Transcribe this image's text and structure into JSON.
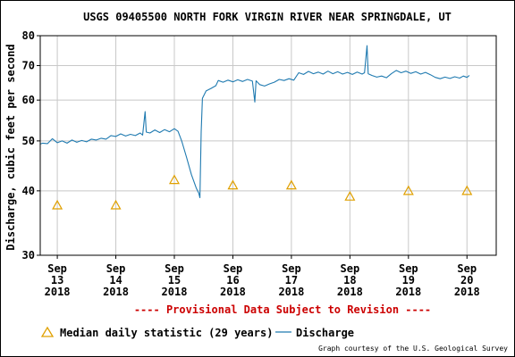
{
  "chart_data": {
    "type": "line",
    "title": "USGS 09405500 NORTH FORK VIRGIN RIVER NEAR SPRINGDALE, UT",
    "ylabel": "Discharge, cubic feet per second",
    "xlabel": "",
    "y_scale": "log",
    "ylim": [
      30,
      80
    ],
    "y_ticks": [
      30,
      40,
      50,
      60,
      70,
      80
    ],
    "x_range": [
      "2018-09-12T17:00",
      "2018-09-20T12:00"
    ],
    "x_ticks": [
      {
        "date": "2018-09-13",
        "month": "Sep",
        "day": "13",
        "year": "2018"
      },
      {
        "date": "2018-09-14",
        "month": "Sep",
        "day": "14",
        "year": "2018"
      },
      {
        "date": "2018-09-15",
        "month": "Sep",
        "day": "15",
        "year": "2018"
      },
      {
        "date": "2018-09-16",
        "month": "Sep",
        "day": "16",
        "year": "2018"
      },
      {
        "date": "2018-09-17",
        "month": "Sep",
        "day": "17",
        "year": "2018"
      },
      {
        "date": "2018-09-18",
        "month": "Sep",
        "day": "18",
        "year": "2018"
      },
      {
        "date": "2018-09-19",
        "month": "Sep",
        "day": "19",
        "year": "2018"
      },
      {
        "date": "2018-09-20",
        "month": "Sep",
        "day": "20",
        "year": "2018"
      }
    ],
    "grid": true,
    "series": [
      {
        "name": "Discharge",
        "color": "#1f7ab0",
        "points": [
          [
            "2018-09-12T17:00",
            49.3
          ],
          [
            "2018-09-12T18:00",
            49.5
          ],
          [
            "2018-09-12T20:00",
            49.4
          ],
          [
            "2018-09-12T22:00",
            50.5
          ],
          [
            "2018-09-13T00:00",
            49.6
          ],
          [
            "2018-09-13T02:00",
            50.0
          ],
          [
            "2018-09-13T04:00",
            49.5
          ],
          [
            "2018-09-13T06:00",
            50.2
          ],
          [
            "2018-09-13T08:00",
            49.7
          ],
          [
            "2018-09-13T10:00",
            50.1
          ],
          [
            "2018-09-13T12:00",
            49.8
          ],
          [
            "2018-09-13T14:00",
            50.4
          ],
          [
            "2018-09-13T16:00",
            50.2
          ],
          [
            "2018-09-13T18:00",
            50.6
          ],
          [
            "2018-09-13T20:00",
            50.4
          ],
          [
            "2018-09-13T22:00",
            51.2
          ],
          [
            "2018-09-14T00:00",
            51.0
          ],
          [
            "2018-09-14T02:00",
            51.6
          ],
          [
            "2018-09-14T04:00",
            51.1
          ],
          [
            "2018-09-14T06:00",
            51.5
          ],
          [
            "2018-09-14T08:00",
            51.2
          ],
          [
            "2018-09-14T10:00",
            51.8
          ],
          [
            "2018-09-14T11:00",
            51.3
          ],
          [
            "2018-09-14T12:00",
            57.0
          ],
          [
            "2018-09-14T12:30",
            52.0
          ],
          [
            "2018-09-14T14:00",
            51.8
          ],
          [
            "2018-09-14T16:00",
            52.5
          ],
          [
            "2018-09-14T18:00",
            51.9
          ],
          [
            "2018-09-14T20:00",
            52.6
          ],
          [
            "2018-09-14T22:00",
            52.1
          ],
          [
            "2018-09-15T00:00",
            52.8
          ],
          [
            "2018-09-15T01:30",
            52.2
          ],
          [
            "2018-09-15T03:00",
            50.0
          ],
          [
            "2018-09-15T05:00",
            46.5
          ],
          [
            "2018-09-15T07:00",
            43.0
          ],
          [
            "2018-09-15T09:00",
            40.5
          ],
          [
            "2018-09-15T10:00",
            39.6
          ],
          [
            "2018-09-15T10:30",
            38.8
          ],
          [
            "2018-09-15T11:00",
            52.0
          ],
          [
            "2018-09-15T11:30",
            60.5
          ],
          [
            "2018-09-15T13:00",
            62.5
          ],
          [
            "2018-09-15T15:00",
            63.2
          ],
          [
            "2018-09-15T17:00",
            64.0
          ],
          [
            "2018-09-15T18:00",
            65.5
          ],
          [
            "2018-09-15T20:00",
            65.0
          ],
          [
            "2018-09-15T22:00",
            65.6
          ],
          [
            "2018-09-16T00:00",
            65.1
          ],
          [
            "2018-09-16T02:00",
            65.7
          ],
          [
            "2018-09-16T04:00",
            65.2
          ],
          [
            "2018-09-16T06:00",
            65.8
          ],
          [
            "2018-09-16T08:00",
            65.3
          ],
          [
            "2018-09-16T09:00",
            59.5
          ],
          [
            "2018-09-16T09:30",
            65.4
          ],
          [
            "2018-09-16T11:00",
            64.3
          ],
          [
            "2018-09-16T13:00",
            63.9
          ],
          [
            "2018-09-16T15:00",
            64.5
          ],
          [
            "2018-09-16T17:00",
            65.0
          ],
          [
            "2018-09-16T19:00",
            65.8
          ],
          [
            "2018-09-16T21:00",
            65.5
          ],
          [
            "2018-09-16T23:00",
            66.0
          ],
          [
            "2018-09-17T01:00",
            65.6
          ],
          [
            "2018-09-17T03:00",
            67.8
          ],
          [
            "2018-09-17T05:00",
            67.3
          ],
          [
            "2018-09-17T07:00",
            68.2
          ],
          [
            "2018-09-17T09:00",
            67.5
          ],
          [
            "2018-09-17T11:00",
            68.0
          ],
          [
            "2018-09-17T13:00",
            67.4
          ],
          [
            "2018-09-17T15:00",
            68.3
          ],
          [
            "2018-09-17T17:00",
            67.5
          ],
          [
            "2018-09-17T19:00",
            68.1
          ],
          [
            "2018-09-17T21:00",
            67.4
          ],
          [
            "2018-09-17T23:00",
            67.9
          ],
          [
            "2018-09-18T01:00",
            67.3
          ],
          [
            "2018-09-18T03:00",
            68.0
          ],
          [
            "2018-09-18T05:00",
            67.4
          ],
          [
            "2018-09-18T06:00",
            67.8
          ],
          [
            "2018-09-18T07:00",
            76.5
          ],
          [
            "2018-09-18T07:30",
            67.5
          ],
          [
            "2018-09-18T09:00",
            67.0
          ],
          [
            "2018-09-18T11:00",
            66.5
          ],
          [
            "2018-09-18T13:00",
            66.8
          ],
          [
            "2018-09-18T15:00",
            66.3
          ],
          [
            "2018-09-18T17:00",
            67.5
          ],
          [
            "2018-09-18T19:00",
            68.5
          ],
          [
            "2018-09-18T21:00",
            67.8
          ],
          [
            "2018-09-18T23:00",
            68.3
          ],
          [
            "2018-09-19T01:00",
            67.6
          ],
          [
            "2018-09-19T03:00",
            68.1
          ],
          [
            "2018-09-19T05:00",
            67.4
          ],
          [
            "2018-09-19T07:00",
            67.9
          ],
          [
            "2018-09-19T09:00",
            67.2
          ],
          [
            "2018-09-19T11:00",
            66.4
          ],
          [
            "2018-09-19T13:00",
            66.0
          ],
          [
            "2018-09-19T15:00",
            66.5
          ],
          [
            "2018-09-19T17:00",
            66.1
          ],
          [
            "2018-09-19T19:00",
            66.6
          ],
          [
            "2018-09-19T21:00",
            66.2
          ],
          [
            "2018-09-19T22:30",
            66.8
          ],
          [
            "2018-09-20T00:00",
            66.4
          ],
          [
            "2018-09-20T01:00",
            67.0
          ]
        ]
      },
      {
        "name": "Median daily statistic (29 years)",
        "color": "#e0a000",
        "marker": "triangle",
        "points": [
          [
            "2018-09-13T00:00",
            37.5
          ],
          [
            "2018-09-14T00:00",
            37.5
          ],
          [
            "2018-09-15T00:00",
            42.0
          ],
          [
            "2018-09-16T00:00",
            41.0
          ],
          [
            "2018-09-17T00:00",
            41.0
          ],
          [
            "2018-09-18T00:00",
            39.0
          ],
          [
            "2018-09-19T00:00",
            40.0
          ],
          [
            "2018-09-20T00:00",
            40.0
          ]
        ]
      }
    ],
    "annotation": "---- Provisional Data Subject to Revision ----",
    "legend": {
      "placement": "bottom",
      "items": [
        {
          "label": "Median daily statistic (29 years)",
          "marker": "triangle",
          "color": "#e0a000"
        },
        {
          "label": "Discharge",
          "marker": "line",
          "color": "#1f7ab0"
        }
      ]
    },
    "credit": "Graph courtesy of the U.S. Geological Survey",
    "annotation_color": "#cc0000",
    "grid_color": "#c8c8c8"
  }
}
